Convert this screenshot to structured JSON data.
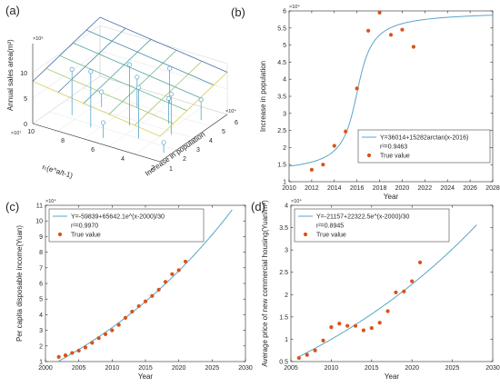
{
  "chart_data": [
    {
      "panel": "(a)",
      "type": "surface3d",
      "zlabel": "Annual sales area(m²)",
      "zexp": "×10⁶",
      "xlabel": "rₜ(e^a/t-1)",
      "xexp": "×10⁷",
      "ylabel": "Increase in population",
      "yexp": "×10⁴",
      "zticks": [
        "0",
        "5",
        "10"
      ],
      "xticks": [
        "2",
        "4",
        "6",
        "8",
        "10"
      ],
      "yticks": [
        "1",
        "2",
        "3",
        "4",
        "5",
        "6"
      ],
      "legend": ""
    },
    {
      "panel": "(b)",
      "type": "line",
      "xlabel": "Year",
      "ylabel": "Increase in population",
      "yexp": "×10⁴",
      "xlim": [
        2010,
        2028
      ],
      "ylim": [
        1,
        6
      ],
      "xticks": [
        2010,
        2012,
        2014,
        2016,
        2018,
        2020,
        2022,
        2024,
        2026,
        2028
      ],
      "yticks": [
        1,
        1.5,
        2,
        2.5,
        3,
        3.5,
        4,
        4.5,
        5,
        5.5,
        6
      ],
      "fit": {
        "a": 36014,
        "b": 15282,
        "c": 2016,
        "kind": "arctan",
        "scale": 10000
      },
      "points": [
        [
          2012,
          1.35
        ],
        [
          2013,
          1.5
        ],
        [
          2014,
          2.05
        ],
        [
          2015,
          2.47
        ],
        [
          2016,
          3.73
        ],
        [
          2017,
          5.42
        ],
        [
          2018,
          5.95
        ],
        [
          2019,
          5.3
        ],
        [
          2020,
          5.45
        ],
        [
          2021,
          4.95
        ]
      ],
      "legend": {
        "fit": "Y=36014+15282arctan(x-2016)",
        "r2": "r²=0.9463",
        "true": "True value"
      }
    },
    {
      "panel": "(c)",
      "type": "line",
      "xlabel": "Year",
      "ylabel": "Per capita disposable income(Yuan)",
      "yexp": "×10⁴",
      "xlim": [
        2000,
        2030
      ],
      "ylim": [
        1,
        11
      ],
      "xticks": [
        2000,
        2005,
        2010,
        2015,
        2020,
        2025,
        2030
      ],
      "yticks": [
        1,
        2,
        3,
        4,
        5,
        6,
        7,
        8,
        9,
        10,
        11
      ],
      "fit": {
        "a": -59839,
        "b": 65642.1,
        "c": 2000,
        "d": 30,
        "kind": "exp",
        "scale": 10000,
        "xrange": [
          2002,
          2028
        ]
      },
      "points": [
        [
          2002,
          1.3
        ],
        [
          2003,
          1.4
        ],
        [
          2004,
          1.55
        ],
        [
          2005,
          1.7
        ],
        [
          2006,
          1.9
        ],
        [
          2007,
          2.2
        ],
        [
          2008,
          2.5
        ],
        [
          2009,
          2.75
        ],
        [
          2010,
          3.0
        ],
        [
          2011,
          3.35
        ],
        [
          2012,
          3.8
        ],
        [
          2013,
          4.2
        ],
        [
          2014,
          4.55
        ],
        [
          2015,
          4.85
        ],
        [
          2016,
          5.2
        ],
        [
          2017,
          5.6
        ],
        [
          2018,
          6.1
        ],
        [
          2019,
          6.6
        ],
        [
          2020,
          6.85
        ],
        [
          2021,
          7.4
        ]
      ],
      "legend": {
        "fit": "Y=-59839+65642.1e^(x-2000)/30",
        "r2": "r²=0.9970",
        "true": "True value"
      }
    },
    {
      "panel": "(d)",
      "type": "line",
      "xlabel": "Year",
      "ylabel": "Average price of new commercial housing(Yuan/m²)",
      "yexp": "×10⁴",
      "xlim": [
        2005,
        2030
      ],
      "ylim": [
        0.5,
        4
      ],
      "xticks": [
        2005,
        2010,
        2015,
        2020,
        2025,
        2030
      ],
      "yticks": [
        0.5,
        1,
        1.5,
        2,
        2.5,
        3,
        3.5,
        4
      ],
      "fit": {
        "a": -21157,
        "b": 22322.5,
        "c": 2000,
        "d": 30,
        "kind": "exp",
        "scale": 10000,
        "xrange": [
          2006,
          2028
        ]
      },
      "points": [
        [
          2006,
          0.58
        ],
        [
          2007,
          0.65
        ],
        [
          2008,
          0.75
        ],
        [
          2009,
          0.97
        ],
        [
          2010,
          1.27
        ],
        [
          2011,
          1.35
        ],
        [
          2012,
          1.3
        ],
        [
          2013,
          1.3
        ],
        [
          2014,
          1.2
        ],
        [
          2015,
          1.25
        ],
        [
          2016,
          1.37
        ],
        [
          2017,
          1.63
        ],
        [
          2018,
          2.05
        ],
        [
          2019,
          2.07
        ],
        [
          2020,
          2.3
        ],
        [
          2021,
          2.72
        ]
      ],
      "legend": {
        "fit": "Y=-21157+22322.5e^(x-2000)/30",
        "r2": "r²=0.8945",
        "true": "True value"
      }
    }
  ]
}
